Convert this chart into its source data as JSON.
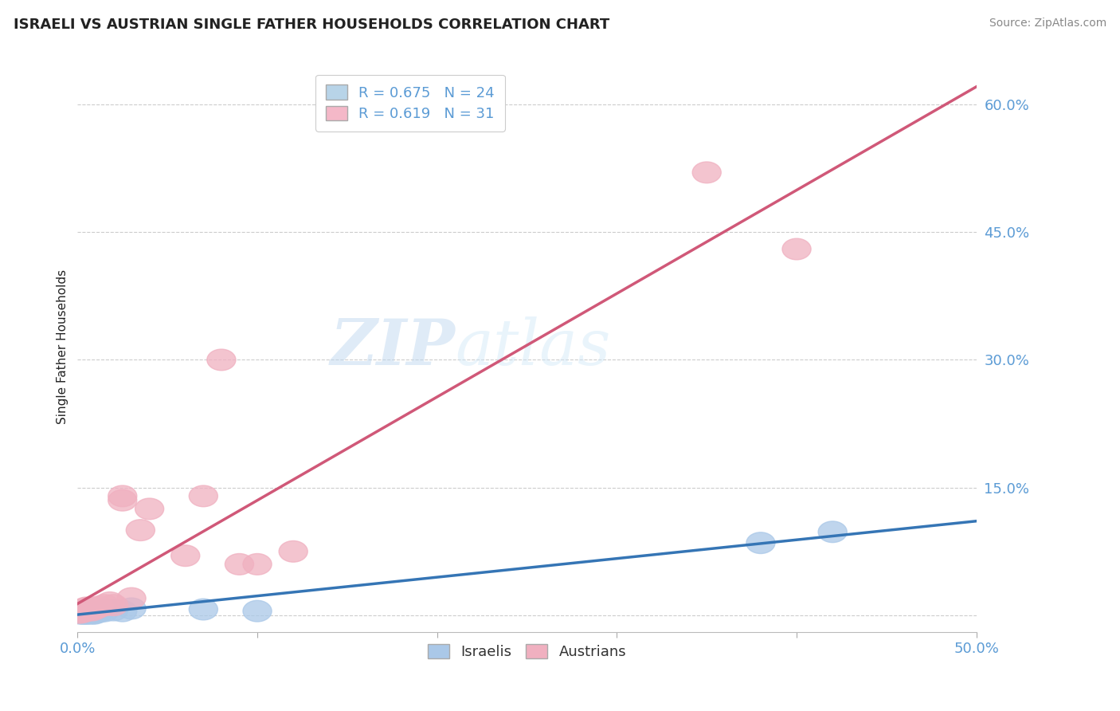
{
  "title": "ISRAELI VS AUSTRIAN SINGLE FATHER HOUSEHOLDS CORRELATION CHART",
  "source": "Source: ZipAtlas.com",
  "ylabel": "Single Father Households",
  "xlim": [
    0.0,
    0.5
  ],
  "ylim": [
    -0.02,
    0.65
  ],
  "yticks": [
    0.0,
    0.15,
    0.3,
    0.45,
    0.6
  ],
  "ytick_labels": [
    "",
    "15.0%",
    "30.0%",
    "45.0%",
    "60.0%"
  ],
  "xticks": [
    0.0,
    0.1,
    0.2,
    0.3,
    0.4,
    0.5
  ],
  "xtick_labels": [
    "0.0%",
    "",
    "",
    "",
    "",
    "50.0%"
  ],
  "watermark_zip": "ZIP",
  "watermark_atlas": "atlas",
  "legend_entries": [
    {
      "label": "R = 0.675   N = 24",
      "color": "#b8d4e8"
    },
    {
      "label": "R = 0.619   N = 31",
      "color": "#f4b8c8"
    }
  ],
  "legend_bottom": [
    "Israelis",
    "Austrians"
  ],
  "israelis": {
    "color": "#aac8e8",
    "line_color": "#3575b5",
    "x": [
      0.001,
      0.002,
      0.002,
      0.003,
      0.003,
      0.004,
      0.004,
      0.005,
      0.005,
      0.006,
      0.006,
      0.007,
      0.008,
      0.009,
      0.01,
      0.012,
      0.015,
      0.02,
      0.025,
      0.03,
      0.07,
      0.1,
      0.38,
      0.42
    ],
    "y": [
      0.003,
      0.002,
      0.004,
      0.003,
      0.005,
      0.002,
      0.004,
      0.003,
      0.004,
      0.002,
      0.005,
      0.003,
      0.004,
      0.002,
      0.003,
      0.004,
      0.005,
      0.006,
      0.005,
      0.008,
      0.007,
      0.005,
      0.085,
      0.098
    ]
  },
  "austrians": {
    "color": "#f0b0c0",
    "line_color": "#d05878",
    "x": [
      0.001,
      0.002,
      0.002,
      0.003,
      0.003,
      0.004,
      0.004,
      0.005,
      0.005,
      0.006,
      0.007,
      0.008,
      0.009,
      0.01,
      0.012,
      0.015,
      0.018,
      0.02,
      0.025,
      0.025,
      0.03,
      0.035,
      0.04,
      0.06,
      0.07,
      0.08,
      0.09,
      0.1,
      0.12,
      0.35,
      0.4
    ],
    "y": [
      0.003,
      0.005,
      0.006,
      0.004,
      0.007,
      0.005,
      0.008,
      0.006,
      0.009,
      0.007,
      0.008,
      0.006,
      0.009,
      0.008,
      0.01,
      0.012,
      0.015,
      0.012,
      0.135,
      0.14,
      0.02,
      0.1,
      0.125,
      0.07,
      0.14,
      0.3,
      0.06,
      0.06,
      0.075,
      0.52,
      0.43
    ]
  },
  "background_color": "#ffffff",
  "grid_color": "#cccccc",
  "title_color": "#222222",
  "tick_color": "#5b9bd5"
}
